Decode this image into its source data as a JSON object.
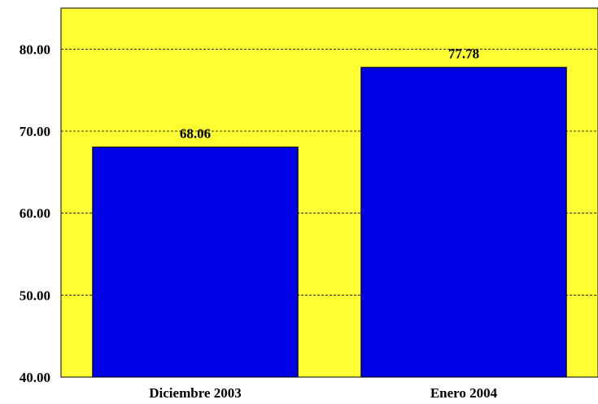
{
  "chart_data": {
    "type": "bar",
    "categories": [
      "Diciembre 2003",
      "Enero 2004"
    ],
    "values": [
      68.06,
      77.78
    ],
    "data_labels": [
      "68.06",
      "77.78"
    ],
    "yticks": [
      "40.00",
      "50.00",
      "60.00",
      "70.00",
      "80.00"
    ],
    "ytick_values": [
      40,
      50,
      60,
      70,
      80
    ],
    "ylim": [
      40,
      85
    ],
    "grid": true,
    "colors": {
      "plot_background": "#ffff33",
      "bar": "#0000e6",
      "bar_border": "#000000",
      "gridline": "#000000"
    }
  }
}
